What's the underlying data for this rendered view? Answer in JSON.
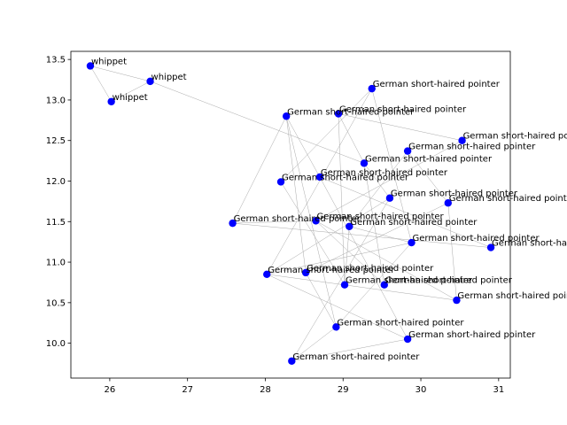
{
  "chart_data": {
    "type": "scatter",
    "title": "",
    "xlabel": "",
    "ylabel": "",
    "xlim": [
      25.5,
      31.15
    ],
    "ylim": [
      9.57,
      13.6
    ],
    "xticks": [
      26,
      27,
      28,
      29,
      30,
      31
    ],
    "yticks": [
      10.0,
      10.5,
      11.0,
      11.5,
      12.0,
      12.5,
      13.0,
      13.5
    ],
    "ytick_labels": [
      "10.0",
      "10.5",
      "11.0",
      "11.5",
      "12.0",
      "12.5",
      "13.0",
      "13.5"
    ],
    "grid": false,
    "legend": false,
    "point_color": "#0000ff",
    "edge_color": "#a9a9a9",
    "points": [
      {
        "x": 25.75,
        "y": 13.42,
        "label": "whippet"
      },
      {
        "x": 26.52,
        "y": 13.23,
        "label": "whippet"
      },
      {
        "x": 26.02,
        "y": 12.98,
        "label": "whippet"
      },
      {
        "x": 29.37,
        "y": 13.14,
        "label": "German short-haired pointer"
      },
      {
        "x": 28.94,
        "y": 12.83,
        "label": "German short-haired pointer"
      },
      {
        "x": 28.27,
        "y": 12.8,
        "label": "German short-haired pointer"
      },
      {
        "x": 30.53,
        "y": 12.5,
        "label": "German short-haired pointer"
      },
      {
        "x": 29.83,
        "y": 12.37,
        "label": "German short-haired pointer"
      },
      {
        "x": 29.27,
        "y": 12.22,
        "label": "German short-haired pointer"
      },
      {
        "x": 28.7,
        "y": 12.05,
        "label": "German short-haired pointer"
      },
      {
        "x": 28.2,
        "y": 11.99,
        "label": "German short-haired pointer"
      },
      {
        "x": 29.6,
        "y": 11.79,
        "label": "German short-haired pointer"
      },
      {
        "x": 30.35,
        "y": 11.73,
        "label": "German short-haired pointer"
      },
      {
        "x": 28.65,
        "y": 11.51,
        "label": "German short-haired pointer"
      },
      {
        "x": 27.58,
        "y": 11.48,
        "label": "German short-haired pointer"
      },
      {
        "x": 29.08,
        "y": 11.44,
        "label": "German short-haired pointer"
      },
      {
        "x": 29.88,
        "y": 11.24,
        "label": "German short-haired pointer"
      },
      {
        "x": 30.9,
        "y": 11.18,
        "label": "German short-haired pointer"
      },
      {
        "x": 28.02,
        "y": 10.85,
        "label": "German short-haired pointer"
      },
      {
        "x": 28.52,
        "y": 10.87,
        "label": "German short-haired pointer"
      },
      {
        "x": 29.02,
        "y": 10.72,
        "label": "German short-haired pointer"
      },
      {
        "x": 29.53,
        "y": 10.72,
        "label": "German short-haired pointer"
      },
      {
        "x": 30.46,
        "y": 10.53,
        "label": "German short-haired pointer"
      },
      {
        "x": 28.91,
        "y": 10.2,
        "label": "German short-haired pointer"
      },
      {
        "x": 29.83,
        "y": 10.05,
        "label": "German short-haired pointer"
      },
      {
        "x": 28.34,
        "y": 9.78,
        "label": "German short-haired pointer"
      }
    ],
    "edges": [
      [
        0,
        1
      ],
      [
        0,
        2
      ],
      [
        1,
        2
      ],
      [
        1,
        8
      ],
      [
        3,
        10
      ],
      [
        3,
        16
      ],
      [
        3,
        18
      ],
      [
        4,
        6
      ],
      [
        4,
        8
      ],
      [
        4,
        20
      ],
      [
        5,
        9
      ],
      [
        5,
        14
      ],
      [
        5,
        19
      ],
      [
        5,
        23
      ],
      [
        6,
        13
      ],
      [
        7,
        12
      ],
      [
        7,
        15
      ],
      [
        8,
        11
      ],
      [
        8,
        21
      ],
      [
        9,
        17
      ],
      [
        9,
        24
      ],
      [
        10,
        20
      ],
      [
        11,
        18
      ],
      [
        11,
        25
      ],
      [
        12,
        19
      ],
      [
        12,
        22
      ],
      [
        13,
        14
      ],
      [
        13,
        21
      ],
      [
        13,
        22
      ],
      [
        14,
        17
      ],
      [
        15,
        16
      ],
      [
        15,
        20
      ],
      [
        16,
        18
      ],
      [
        16,
        23
      ],
      [
        18,
        24
      ],
      [
        18,
        22
      ],
      [
        23,
        19
      ],
      [
        23,
        25
      ],
      [
        24,
        25
      ]
    ]
  }
}
